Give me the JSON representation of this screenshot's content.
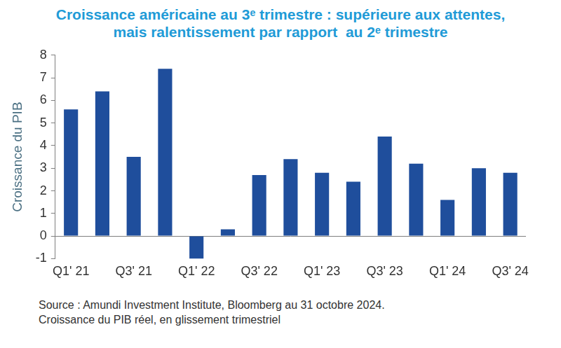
{
  "chart_data": {
    "type": "bar",
    "title": [
      "Croissance américaine au 3ᵉ trimestre : supérieure aux attentes,",
      "mais ralentissement par rapport  au 2ᵉ trimestre"
    ],
    "y_label": "Croissance du PIB",
    "notes": [
      "Source : Amundi Investment Institute, Bloomberg au 31 octobre 2024.",
      "Croissance du PIB réel, en glissement trimestriel"
    ],
    "categories": [
      "Q1' 21",
      null,
      "Q3' 21",
      null,
      "Q1' 22",
      null,
      "Q3' 22",
      null,
      "Q1' 23",
      null,
      "Q3' 23",
      null,
      "Q1' 24",
      null,
      "Q3' 24"
    ],
    "values": [
      5.6,
      6.4,
      3.5,
      7.4,
      -1.0,
      0.3,
      2.7,
      3.4,
      2.8,
      2.4,
      4.4,
      3.2,
      1.6,
      3.0,
      2.8
    ],
    "color": "#1f4e9c",
    "ylim": [
      -1,
      8
    ],
    "yticks": [
      -1,
      0,
      1,
      2,
      3,
      4,
      5,
      6,
      7,
      8
    ],
    "grid": false
  }
}
